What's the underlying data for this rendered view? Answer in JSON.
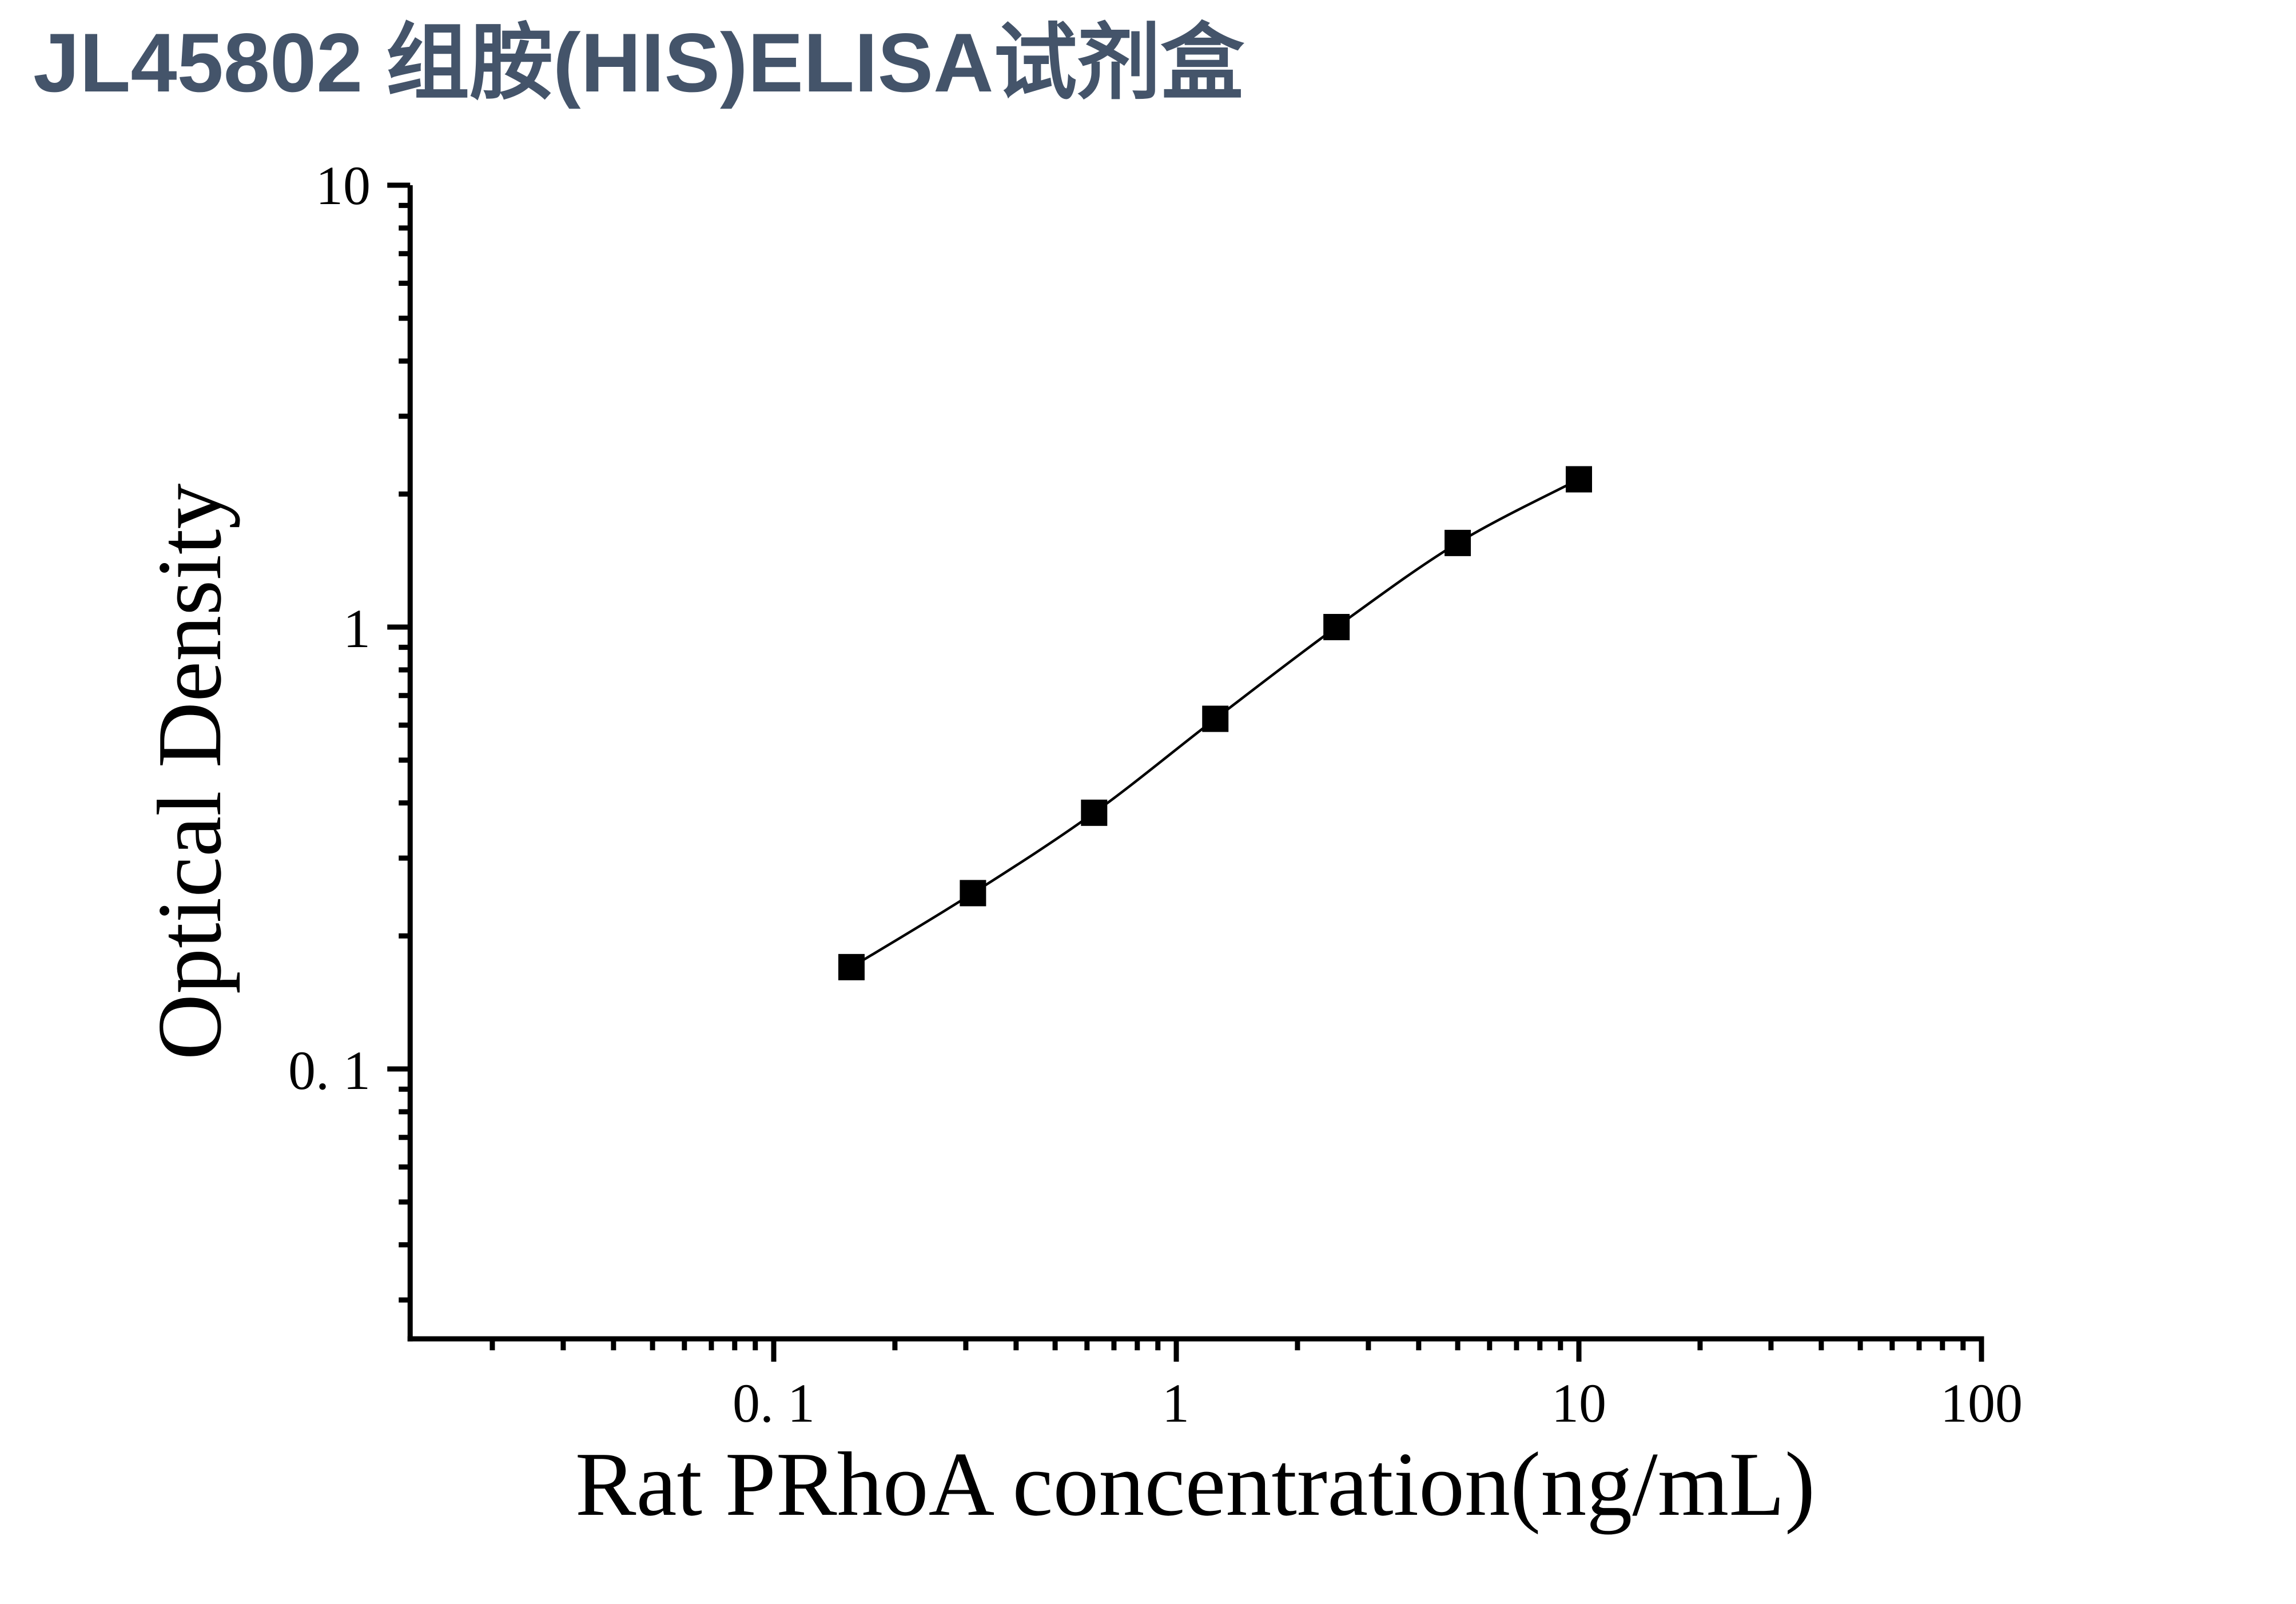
{
  "title": {
    "text": "JL45802 组胺(HIS)ELISA试剂盒",
    "color": "#44546A"
  },
  "chart_data": {
    "type": "line",
    "title": "JL45802 组胺(HIS)ELISA试剂盒",
    "xlabel": "Rat PRhoA concentration(ng/mL)",
    "ylabel": "Optical Density",
    "x_scale": "log",
    "y_scale": "log",
    "x_range": [
      0.0125,
      100
    ],
    "y_range": [
      0.0245,
      10
    ],
    "x_major_ticks": [
      0.1,
      1,
      10,
      100
    ],
    "x_tick_labels": [
      "0. 1",
      "1",
      "10",
      "100"
    ],
    "y_major_ticks": [
      10,
      1,
      0.1
    ],
    "y_tick_labels": [
      "10",
      "1",
      "0. 1"
    ],
    "grid": false,
    "legend": "none",
    "marker": "filled-square",
    "series": [
      {
        "name": "standard-curve",
        "x": [
          0.156,
          0.3125,
          0.625,
          1.25,
          2.5,
          5,
          10
        ],
        "y": [
          0.17,
          0.25,
          0.38,
          0.62,
          1.0,
          1.55,
          2.16
        ]
      }
    ],
    "colors": {
      "axis": "#000000",
      "line": "#000000",
      "marker": "#000000",
      "text": "#000000",
      "title": "#44546A"
    }
  }
}
